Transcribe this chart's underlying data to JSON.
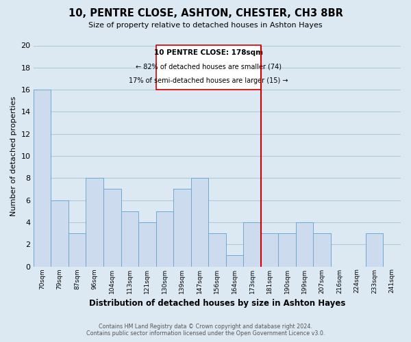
{
  "title": "10, PENTRE CLOSE, ASHTON, CHESTER, CH3 8BR",
  "subtitle": "Size of property relative to detached houses in Ashton Hayes",
  "xlabel": "Distribution of detached houses by size in Ashton Hayes",
  "ylabel": "Number of detached properties",
  "footer_line1": "Contains HM Land Registry data © Crown copyright and database right 2024.",
  "footer_line2": "Contains public sector information licensed under the Open Government Licence v3.0.",
  "bins": [
    "70sqm",
    "79sqm",
    "87sqm",
    "96sqm",
    "104sqm",
    "113sqm",
    "121sqm",
    "130sqm",
    "139sqm",
    "147sqm",
    "156sqm",
    "164sqm",
    "173sqm",
    "181sqm",
    "190sqm",
    "199sqm",
    "207sqm",
    "216sqm",
    "224sqm",
    "233sqm",
    "241sqm"
  ],
  "values": [
    16,
    6,
    3,
    8,
    7,
    5,
    4,
    5,
    7,
    8,
    3,
    1,
    4,
    3,
    3,
    4,
    3,
    0,
    0,
    3,
    0
  ],
  "bar_fill_color": "#ccdcee",
  "bar_edge_color": "#6fa8d0",
  "grid_color": "#b0c8dc",
  "background_color": "#dce9f3",
  "property_line_color": "#cc0000",
  "property_line_bin_index": 13,
  "annotation_title": "10 PENTRE CLOSE: 178sqm",
  "annotation_line1": "← 82% of detached houses are smaller (74)",
  "annotation_line2": "17% of semi-detached houses are larger (15) →",
  "ylim": [
    0,
    20
  ],
  "yticks": [
    0,
    2,
    4,
    6,
    8,
    10,
    12,
    14,
    16,
    18,
    20
  ]
}
